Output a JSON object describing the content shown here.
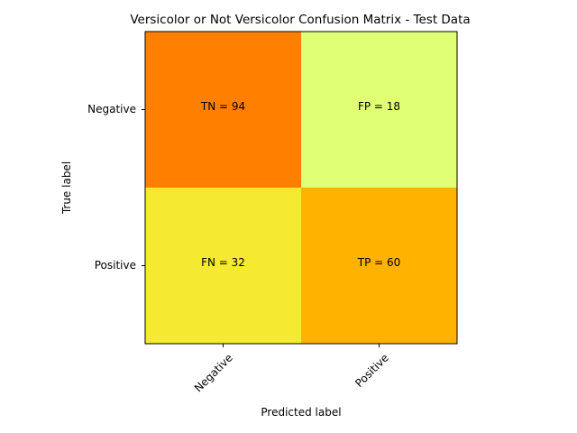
{
  "chart_data": {
    "type": "heatmap",
    "title": "Versicolor or Not Versicolor Confusion Matrix - Test Data",
    "xlabel": "Predicted label",
    "ylabel": "True label",
    "x_categories": [
      "Negative",
      "Positive"
    ],
    "y_categories": [
      "Negative",
      "Positive"
    ],
    "values": [
      [
        94,
        18
      ],
      [
        32,
        60
      ]
    ],
    "cell_labels": [
      [
        "TN = 94",
        "FP = 18"
      ],
      [
        "FN = 32",
        "TP = 60"
      ]
    ],
    "cell_colors": [
      [
        "#ff8000",
        "#e0ff75"
      ],
      [
        "#f6ea30",
        "#ffb300"
      ]
    ],
    "x_tick_rotation_deg": 45,
    "grid": false,
    "legend": false
  }
}
